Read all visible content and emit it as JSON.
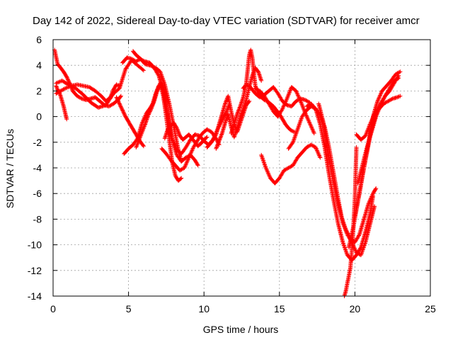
{
  "chart_data": {
    "type": "scatter",
    "title": "Day 142 of 2022, Sidereal Day-to-day VTEC variation (SDTVAR) for receiver amcr",
    "xlabel": "GPS time / hours",
    "ylabel": "SDTVAR / TECUs",
    "xlim": [
      0,
      25
    ],
    "ylim": [
      -14,
      6
    ],
    "xticks": [
      0,
      5,
      10,
      15,
      20,
      25
    ],
    "yticks": [
      -14,
      -12,
      -10,
      -8,
      -6,
      -4,
      -2,
      0,
      2,
      4,
      6
    ],
    "grid": true,
    "marker": "plus",
    "color": "#ff0000",
    "series": [
      {
        "x": [
          0.1,
          0.3,
          0.5,
          0.7,
          0.9,
          1.1,
          1.3,
          1.6,
          1.9,
          2.2,
          2.5,
          2.8,
          3.1,
          3.4,
          3.7,
          4.0,
          4.3,
          4.5
        ],
        "y": [
          5.2,
          4.1,
          3.8,
          3.5,
          3.1,
          2.6,
          2.0,
          1.6,
          1.4,
          1.3,
          1.4,
          1.5,
          1.2,
          0.9,
          0.8,
          1.0,
          1.3,
          1.6
        ]
      },
      {
        "x": [
          0.2,
          0.3,
          0.4,
          0.5,
          0.6,
          0.7,
          0.8,
          0.9
        ],
        "y": [
          2.4,
          2.1,
          1.9,
          1.6,
          1.2,
          0.8,
          0.3,
          -0.2
        ]
      },
      {
        "x": [
          0.2,
          0.5,
          0.8,
          1.2,
          1.6,
          2.0,
          2.4,
          2.8,
          3.2,
          3.5,
          3.8,
          4.0,
          4.2,
          4.4
        ],
        "y": [
          1.8,
          2.0,
          2.2,
          2.4,
          2.5,
          2.4,
          2.3,
          2.0,
          1.6,
          1.2,
          1.5,
          2.1,
          2.5,
          2.4
        ]
      },
      {
        "x": [
          0.2,
          0.6,
          1.0,
          1.5,
          2.0,
          2.5,
          3.0,
          3.5,
          4.0,
          4.4,
          4.8,
          5.2,
          5.6,
          6.0
        ],
        "y": [
          2.6,
          2.8,
          2.5,
          2.2,
          1.7,
          1.1,
          0.7,
          0.9,
          1.8,
          2.2,
          3.7,
          4.4,
          4.0,
          3.6
        ]
      },
      {
        "x": [
          4.2,
          4.4,
          4.6,
          4.8,
          5.0,
          5.2,
          5.4,
          5.6,
          5.8,
          6.0
        ],
        "y": [
          1.5,
          1.0,
          0.5,
          0.0,
          -0.4,
          -0.8,
          -1.2,
          -1.6,
          -2.0,
          -2.3
        ]
      },
      {
        "x": [
          4.6,
          4.9,
          5.2,
          5.5,
          5.8,
          6.1,
          6.4,
          6.8,
          7.1,
          7.4,
          7.7,
          8.0,
          8.3,
          8.5
        ],
        "y": [
          4.2,
          4.6,
          4.5,
          4.3,
          4.5,
          4.1,
          4.0,
          3.8,
          3.5,
          2.5,
          1.0,
          -0.8,
          -2.6,
          -3.5
        ]
      },
      {
        "x": [
          5.3,
          5.5,
          5.7,
          5.9,
          6.1,
          6.4,
          6.7,
          7.0,
          7.3,
          7.6,
          7.9,
          8.2,
          8.5,
          8.8,
          9.1,
          9.4,
          9.6
        ],
        "y": [
          5.1,
          4.8,
          4.6,
          4.4,
          4.3,
          4.2,
          3.8,
          3.2,
          2.0,
          0.0,
          -1.8,
          -3.0,
          -3.5,
          -3.2,
          -3.0,
          -3.4,
          -3.8
        ]
      },
      {
        "x": [
          4.7,
          5.0,
          5.3,
          5.6,
          5.9,
          6.2,
          6.4,
          6.6,
          6.8,
          7.0,
          7.2,
          7.4,
          7.6,
          7.8
        ],
        "y": [
          -2.9,
          -2.5,
          -2.2,
          -1.7,
          -0.5,
          0.3,
          0.6,
          1.0,
          1.8,
          2.4,
          2.6,
          1.8,
          0.2,
          -1.5
        ]
      },
      {
        "x": [
          5.5,
          5.8,
          6.1,
          6.3,
          6.5,
          6.7,
          6.9,
          7.1,
          7.3,
          7.5,
          7.7,
          7.9,
          8.1,
          8.3,
          8.5
        ],
        "y": [
          -2.4,
          -1.5,
          -0.6,
          0.1,
          0.6,
          1.2,
          2.0,
          2.6,
          1.6,
          0.0,
          -1.8,
          -3.6,
          -4.6,
          -5.0,
          -4.8
        ]
      },
      {
        "x": [
          7.2,
          7.5,
          7.8,
          8.1,
          8.4,
          8.7,
          9.0,
          9.3,
          9.6,
          9.9,
          10.2,
          10.5,
          10.8,
          11.0
        ],
        "y": [
          -2.5,
          -2.9,
          -3.4,
          -3.8,
          -4.2,
          -4.0,
          -3.2,
          -2.4,
          -1.8,
          -1.3,
          -1.0,
          -1.2,
          -1.7,
          -2.2
        ]
      },
      {
        "x": [
          7.6,
          7.9,
          8.2,
          8.5,
          8.8,
          9.1,
          9.4,
          9.7,
          10.0,
          10.3,
          10.6,
          10.9,
          11.2,
          11.5,
          11.7
        ],
        "y": [
          -1.0,
          -1.8,
          -2.6,
          -2.9,
          -2.4,
          -1.8,
          -1.4,
          -1.5,
          -1.9,
          -2.2,
          -1.8,
          -1.0,
          -0.3,
          0.4,
          1.0
        ]
      },
      {
        "x": [
          7.4,
          7.6,
          7.8,
          8.0,
          8.2,
          8.4,
          8.6,
          8.8,
          9.0,
          9.2,
          9.4,
          9.6,
          9.8,
          10.0,
          10.2
        ],
        "y": [
          -1.7,
          -1.0,
          -0.7,
          -0.5,
          -0.9,
          -1.5,
          -1.8,
          -1.6,
          -1.4,
          -1.7,
          -2.0,
          -2.3,
          -2.1,
          -1.8,
          -1.6
        ]
      },
      {
        "x": [
          10.2,
          10.5,
          10.8,
          11.0,
          11.2,
          11.4,
          11.6,
          11.8,
          12.0,
          12.2,
          12.4,
          12.6,
          12.8,
          13.0
        ],
        "y": [
          -2.4,
          -2.0,
          -1.4,
          -0.6,
          0.2,
          1.0,
          1.6,
          0.4,
          -0.6,
          -1.2,
          -0.5,
          0.2,
          0.9,
          1.2
        ]
      },
      {
        "x": [
          10.8,
          11.0,
          11.2,
          11.4,
          11.6,
          11.8,
          12.0,
          12.2,
          12.4,
          12.6,
          12.8,
          13.0,
          13.2,
          13.4,
          13.6,
          13.8
        ],
        "y": [
          -2.5,
          -1.9,
          -1.3,
          -0.5,
          0.2,
          -0.8,
          -1.6,
          -0.9,
          0.0,
          0.6,
          1.3,
          2.3,
          3.2,
          3.8,
          3.5,
          2.8
        ]
      },
      {
        "x": [
          11.8,
          12.0,
          12.2,
          12.4,
          12.6,
          12.8,
          13.0,
          13.1,
          13.2,
          13.3,
          13.4,
          13.6,
          13.8,
          14.0,
          14.2,
          14.4,
          14.6,
          14.8,
          15.0,
          15.2,
          15.4,
          15.6,
          15.8,
          16.0
        ],
        "y": [
          -1.3,
          -0.6,
          0.2,
          0.8,
          1.5,
          2.6,
          4.8,
          5.2,
          4.6,
          3.5,
          2.4,
          1.8,
          1.5,
          1.3,
          1.2,
          1.0,
          0.8,
          0.5,
          0.2,
          -0.2,
          -0.6,
          -0.9,
          -1.1,
          -1.2
        ]
      },
      {
        "x": [
          12.6,
          12.8,
          13.0,
          13.2,
          13.4,
          13.7,
          14.0,
          14.3,
          14.6,
          14.9,
          15.2,
          15.5,
          15.8,
          16.1,
          16.4,
          16.7,
          17.0
        ],
        "y": [
          2.2,
          2.5,
          2.4,
          2.1,
          1.8,
          1.5,
          1.7,
          2.0,
          2.3,
          1.8,
          1.2,
          0.9,
          0.8,
          1.2,
          1.4,
          1.3,
          1.1
        ]
      },
      {
        "x": [
          13.4,
          13.7,
          14.0,
          14.3,
          14.6,
          14.9,
          15.2,
          15.5,
          15.8,
          16.1,
          16.4,
          16.7,
          17.0,
          17.3
        ],
        "y": [
          2.2,
          2.0,
          1.6,
          1.0,
          0.4,
          0.0,
          0.6,
          1.4,
          2.3,
          2.0,
          1.2,
          0.3,
          -0.5,
          -1.3
        ]
      },
      {
        "x": [
          13.8,
          14.1,
          14.4,
          14.7,
          15.0,
          15.3,
          15.6,
          15.9,
          16.2,
          16.5,
          16.8,
          17.1,
          17.4,
          17.7
        ],
        "y": [
          -3.0,
          -4.0,
          -4.8,
          -5.2,
          -4.8,
          -4.2,
          -4.0,
          -3.8,
          -3.2,
          -2.8,
          -2.4,
          -2.2,
          -2.4,
          -3.2
        ]
      },
      {
        "x": [
          15.6,
          15.9,
          16.2,
          16.5,
          16.8,
          17.1,
          17.4,
          17.7,
          18.0,
          18.3,
          18.6,
          18.9,
          19.2,
          19.5,
          19.8,
          20.1,
          20.4,
          20.7,
          21.0,
          21.3
        ],
        "y": [
          -2.5,
          -2.0,
          -1.0,
          0.0,
          0.5,
          0.8,
          0.6,
          0.1,
          -0.8,
          -2.5,
          -4.5,
          -6.5,
          -8.3,
          -9.2,
          -9.8,
          -10.6,
          -10.8,
          -9.8,
          -8.4,
          -7.0
        ]
      },
      {
        "x": [
          16.8,
          17.1,
          17.4,
          17.7,
          18.0,
          18.3,
          18.6,
          18.9,
          19.2,
          19.5,
          19.8,
          20.1,
          20.4,
          20.7,
          21.0,
          21.2
        ],
        "y": [
          0.8,
          1.0,
          0.6,
          -0.6,
          -2.4,
          -4.6,
          -6.6,
          -8.4,
          -9.8,
          -10.8,
          -11.2,
          -10.8,
          -10.2,
          -9.0,
          -7.6,
          -6.2
        ]
      },
      {
        "x": [
          17.6,
          17.9,
          18.2,
          18.5,
          18.8,
          19.1,
          19.4,
          19.7,
          20.0,
          20.3,
          20.6,
          20.9,
          21.2,
          21.4
        ],
        "y": [
          1.0,
          -0.4,
          -2.6,
          -4.6,
          -6.4,
          -7.8,
          -8.8,
          -9.5,
          -9.8,
          -9.2,
          -8.0,
          -6.8,
          -6.0,
          -5.6
        ]
      },
      {
        "x": [
          19.3,
          19.4,
          19.5,
          19.6,
          19.7,
          19.8,
          19.9,
          20.0,
          20.1
        ],
        "y": [
          -14.0,
          -13.6,
          -13.0,
          -12.4,
          -11.8,
          -10.4,
          -8.6,
          -6.4,
          -2.4
        ]
      },
      {
        "x": [
          19.6,
          19.9,
          20.2,
          20.5,
          20.8,
          21.1,
          21.4,
          21.7,
          22.0,
          22.3,
          22.6,
          22.9
        ],
        "y": [
          -10.2,
          -8.6,
          -6.6,
          -4.6,
          -2.8,
          -1.0,
          0.2,
          1.0,
          1.6,
          2.2,
          2.8,
          3.0
        ]
      },
      {
        "x": [
          20.0,
          20.3,
          20.6,
          20.9,
          21.2,
          21.5,
          21.8,
          22.1,
          22.4,
          22.7,
          23.0
        ],
        "y": [
          -7.8,
          -6.0,
          -4.0,
          -2.0,
          0.0,
          1.2,
          2.0,
          2.4,
          2.8,
          3.3,
          3.5
        ]
      },
      {
        "x": [
          20.2,
          20.5,
          20.8,
          21.1,
          21.4,
          21.7,
          22.0,
          22.3,
          22.6,
          22.9
        ],
        "y": [
          -5.2,
          -3.8,
          -2.4,
          -1.2,
          0.0,
          0.9,
          1.6,
          2.0,
          2.6,
          3.2
        ]
      },
      {
        "x": [
          20.1,
          20.4,
          20.7,
          21.0,
          21.3,
          21.6,
          21.9,
          22.2,
          22.5,
          22.8,
          23.0
        ],
        "y": [
          -1.4,
          -1.8,
          -1.5,
          -0.6,
          0.2,
          0.6,
          1.0,
          1.2,
          1.4,
          1.5,
          1.6
        ]
      }
    ]
  }
}
